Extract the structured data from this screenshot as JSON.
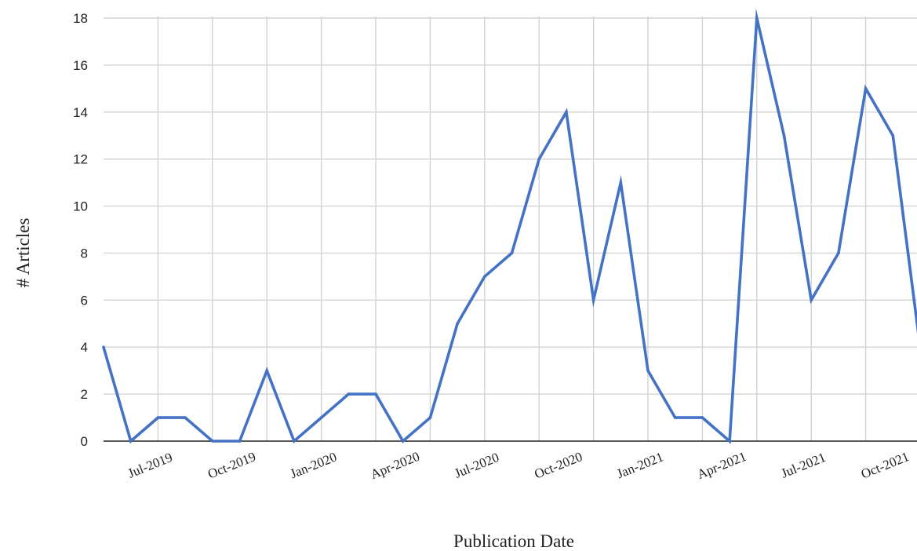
{
  "chart_data": {
    "type": "line",
    "title": "",
    "xlabel": "Publication Date",
    "ylabel": "# Articles",
    "ylim": [
      0,
      18
    ],
    "yticks": [
      0,
      2,
      4,
      6,
      8,
      10,
      12,
      14,
      16,
      18
    ],
    "x_tick_labels": [
      "Jul-2019",
      "Oct-2019",
      "Jan-2020",
      "Apr-2020",
      "Jul-2020",
      "Oct-2020",
      "Jan-2021",
      "Apr-2021",
      "Jul-2021",
      "Oct-2021"
    ],
    "grid": true,
    "line_color": "#4472C4",
    "series": [
      {
        "x": [
          "May-2019",
          "Jun-2019",
          "Jul-2019",
          "Aug-2019",
          "Sep-2019",
          "Oct-2019",
          "Nov-2019",
          "Dec-2019",
          "Jan-2020",
          "Feb-2020",
          "Mar-2020",
          "Apr-2020",
          "May-2020",
          "Jun-2020",
          "Jul-2020",
          "Aug-2020",
          "Sep-2020",
          "Oct-2020",
          "Nov-2020",
          "Dec-2020",
          "Jan-2021",
          "Feb-2021",
          "Mar-2021",
          "Apr-2021",
          "May-2021",
          "Jun-2021",
          "Jul-2021",
          "Aug-2021",
          "Sep-2021",
          "Oct-2021",
          "Nov-2021"
        ],
        "values": [
          4,
          0,
          1,
          1,
          0,
          0,
          3,
          0,
          1,
          2,
          2,
          0,
          1,
          5,
          7,
          8,
          12,
          14,
          6,
          11,
          3,
          1,
          1,
          0,
          18,
          13,
          6,
          8,
          15,
          13,
          4
        ]
      }
    ]
  }
}
